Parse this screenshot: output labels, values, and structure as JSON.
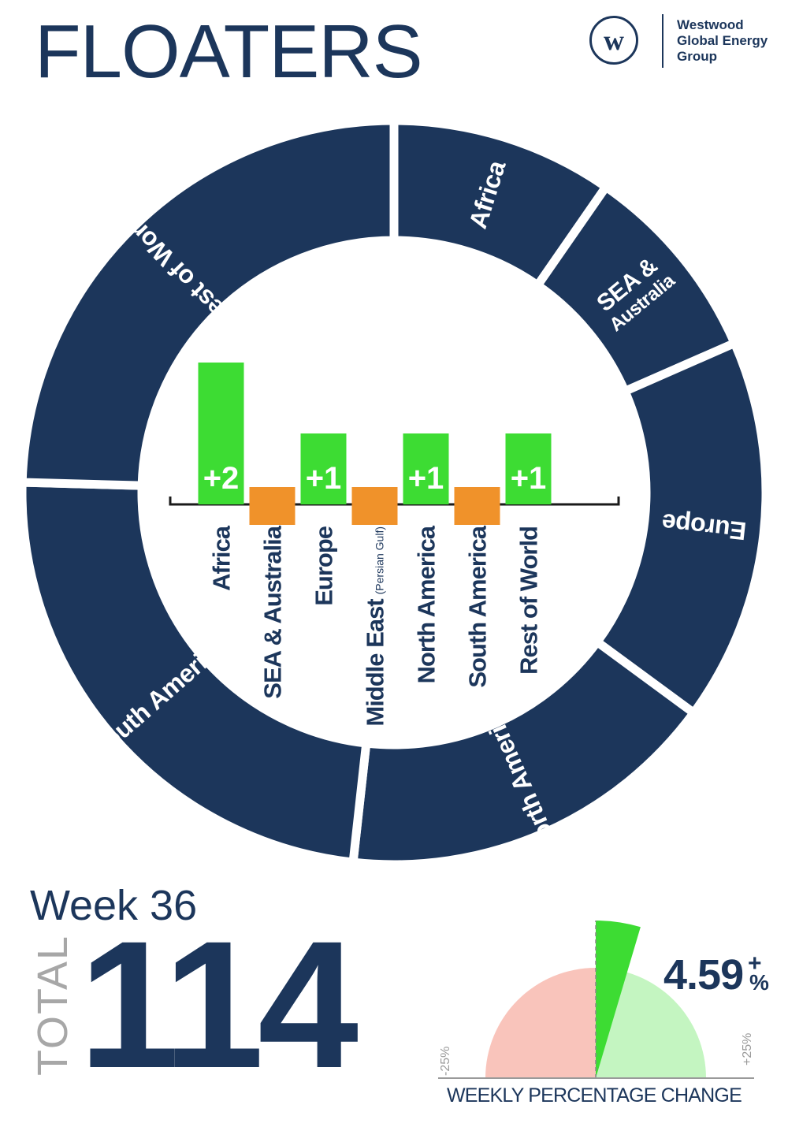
{
  "header": {
    "title": "FLOATERS",
    "logo_mark": "w",
    "logo_lines": [
      "Westwood",
      "Global Energy",
      "Group"
    ]
  },
  "colors": {
    "navy": "#1c365b",
    "up": "#3ddc33",
    "down": "#f0922a",
    "gauge_negative": "#f9c4bb",
    "gauge_positive": "#c4f5c1"
  },
  "chart_data": [
    {
      "type": "pie",
      "style": "donut",
      "segments": [
        {
          "label": "Africa",
          "value": 11
        },
        {
          "label": "SEA & Australia",
          "value": 10
        },
        {
          "label": "Europe",
          "value": 19
        },
        {
          "label": "North America",
          "value": 19
        },
        {
          "label": "South America",
          "value": 27
        },
        {
          "label": "Rest of World",
          "value": 28
        }
      ]
    },
    {
      "type": "bar",
      "title": "",
      "categories": [
        "Africa",
        "SEA & Australia",
        "Europe",
        "Middle East",
        "North America",
        "South America",
        "Rest of World"
      ],
      "category_notes": [
        "",
        "",
        "",
        "(Persian Gulf)",
        "",
        "",
        ""
      ],
      "values": [
        2,
        0,
        1,
        0,
        1,
        0,
        1
      ],
      "value_labels": [
        "+2",
        "",
        "+1",
        "",
        "+1",
        "",
        "+1"
      ],
      "ylim": [
        -1,
        3
      ]
    },
    {
      "type": "gauge",
      "value": 4.59,
      "value_label": "4.59",
      "sign": "+",
      "unit": "%",
      "range": [
        -25,
        25
      ],
      "min_label": "-25%",
      "max_label": "+25%",
      "caption": "WEEKLY PERCENTAGE CHANGE"
    }
  ],
  "summary": {
    "week_label": "Week 36",
    "total_label": "TOTAL",
    "total_value": "114"
  }
}
